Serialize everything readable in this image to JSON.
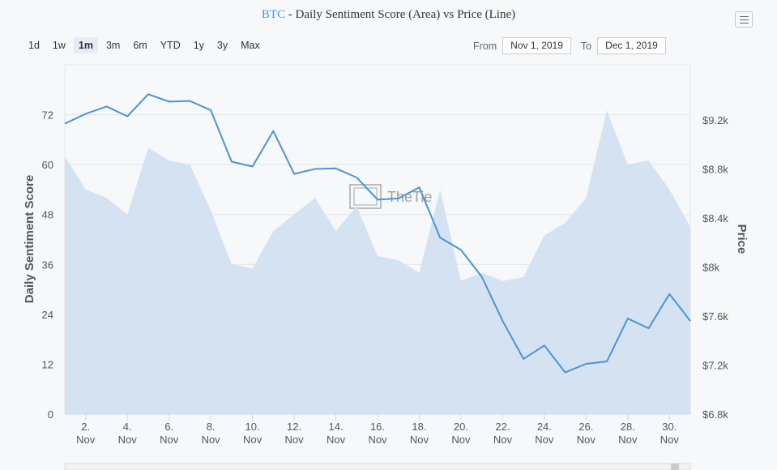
{
  "header": {
    "ticker": "BTC",
    "title_rest": " - Daily Sentiment Score (Area) vs Price (Line)"
  },
  "range_selector": {
    "buttons": [
      "1d",
      "1w",
      "1m",
      "3m",
      "6m",
      "YTD",
      "1y",
      "3y",
      "Max"
    ],
    "active": "1m"
  },
  "date_range": {
    "from_label": "From",
    "from_value": "Nov 1, 2019",
    "to_label": "To",
    "to_value": "Dec 1, 2019"
  },
  "menu_icon": "hamburger-icon",
  "watermark": "TheTie",
  "colors": {
    "area_fill": "#d4e2f2",
    "line": "#4b94d2",
    "ticker": "#4d96d8",
    "grid": "#e3e3e3"
  },
  "chart_data": {
    "type": "line",
    "x": [
      "Nov 1",
      "Nov 2",
      "Nov 3",
      "Nov 4",
      "Nov 5",
      "Nov 6",
      "Nov 7",
      "Nov 8",
      "Nov 9",
      "Nov 10",
      "Nov 11",
      "Nov 12",
      "Nov 13",
      "Nov 14",
      "Nov 15",
      "Nov 16",
      "Nov 17",
      "Nov 18",
      "Nov 19",
      "Nov 20",
      "Nov 21",
      "Nov 22",
      "Nov 23",
      "Nov 24",
      "Nov 25",
      "Nov 26",
      "Nov 27",
      "Nov 28",
      "Nov 29",
      "Nov 30",
      "Dec 1"
    ],
    "xtick_labels": [
      {
        "day": "2.",
        "month": "Nov"
      },
      {
        "day": "4.",
        "month": "Nov"
      },
      {
        "day": "6.",
        "month": "Nov"
      },
      {
        "day": "8.",
        "month": "Nov"
      },
      {
        "day": "10.",
        "month": "Nov"
      },
      {
        "day": "12.",
        "month": "Nov"
      },
      {
        "day": "14.",
        "month": "Nov"
      },
      {
        "day": "16.",
        "month": "Nov"
      },
      {
        "day": "18.",
        "month": "Nov"
      },
      {
        "day": "20.",
        "month": "Nov"
      },
      {
        "day": "22.",
        "month": "Nov"
      },
      {
        "day": "24.",
        "month": "Nov"
      },
      {
        "day": "26.",
        "month": "Nov"
      },
      {
        "day": "28.",
        "month": "Nov"
      },
      {
        "day": "30.",
        "month": "Nov"
      }
    ],
    "ylabel_left": "Daily Sentiment Score",
    "ylabel_right": "Price",
    "ylim_left": [
      0,
      84
    ],
    "yticks_left": [
      0,
      12,
      24,
      36,
      48,
      60,
      72
    ],
    "ylim_right": [
      6800,
      9650
    ],
    "yticks_right": [
      6800,
      7200,
      7600,
      8000,
      8400,
      8800,
      9200
    ],
    "ytick_labels_right": [
      "$6.8k",
      "$7.2k",
      "$7.6k",
      "$8k",
      "$8.4k",
      "$8.8k",
      "$9.2k"
    ],
    "grid": true,
    "series": [
      {
        "kind": "area",
        "axis": "left",
        "values": [
          62,
          54,
          52,
          48,
          64,
          61,
          60,
          49,
          36,
          35,
          44,
          48,
          52,
          44,
          50,
          38,
          37,
          34,
          54,
          32,
          34,
          32,
          33,
          43,
          46,
          52,
          73,
          60,
          61,
          54,
          45
        ]
      },
      {
        "kind": "line",
        "axis": "right",
        "values": [
          9170,
          9250,
          9310,
          9230,
          9410,
          9350,
          9355,
          9280,
          8860,
          8820,
          9110,
          8760,
          8800,
          8805,
          8730,
          8550,
          8560,
          8650,
          8240,
          8140,
          7920,
          7560,
          7250,
          7360,
          7140,
          7210,
          7230,
          7580,
          7500,
          7780,
          7560
        ]
      }
    ]
  }
}
